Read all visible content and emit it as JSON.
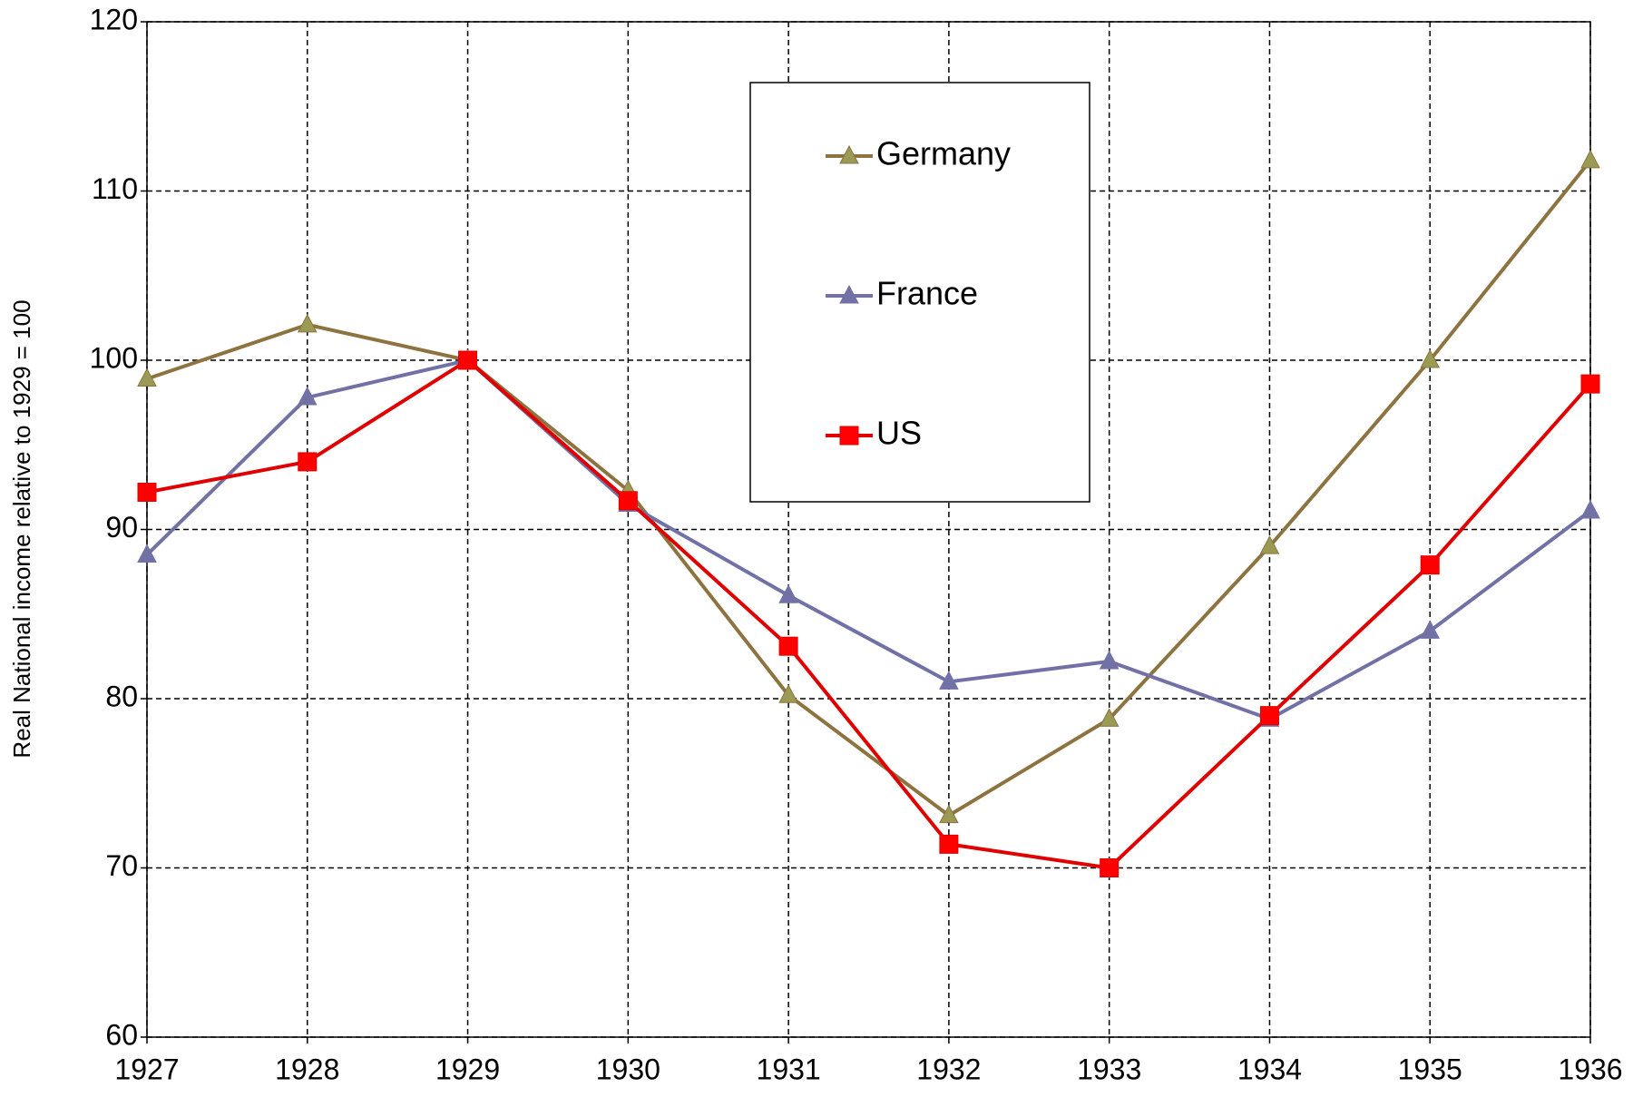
{
  "chart_data": {
    "type": "line",
    "ylabel": "Real National income relative to 1929 = 100",
    "x": [
      1927,
      1928,
      1929,
      1930,
      1931,
      1932,
      1933,
      1934,
      1935,
      1936
    ],
    "series": [
      {
        "name": "Germany",
        "color": "#8c7340",
        "marker": "triangle",
        "marker_color": "#9a9a55",
        "values": [
          98.9,
          102.1,
          100,
          92.3,
          80.2,
          73.1,
          78.8,
          89,
          100,
          111.8
        ]
      },
      {
        "name": "France",
        "color": "#7171a6",
        "marker": "triangle",
        "marker_color": "#7171a6",
        "values": [
          88.5,
          97.8,
          100,
          91.5,
          86.1,
          81,
          82.2,
          78.8,
          84,
          91.1
        ]
      },
      {
        "name": "US",
        "color": "#e00000",
        "marker": "square",
        "marker_color": "#ff0000",
        "values": [
          92.2,
          94,
          100,
          91.7,
          83.1,
          71.4,
          70,
          79,
          87.9,
          98.6
        ]
      }
    ],
    "xlim": [
      1927,
      1936
    ],
    "xticks": [
      1927,
      1928,
      1929,
      1930,
      1931,
      1932,
      1933,
      1934,
      1935,
      1936
    ],
    "ylim": [
      60,
      120
    ],
    "yticks": [
      60,
      70,
      80,
      90,
      100,
      110,
      120
    ],
    "grid": true
  }
}
